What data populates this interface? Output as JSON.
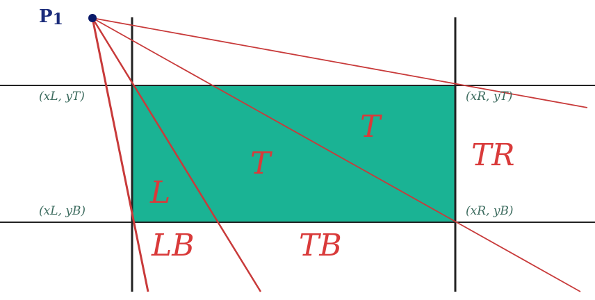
{
  "point": {
    "name": "P",
    "subscript": "1"
  },
  "corners": {
    "top_left": "(xL, yT)",
    "top_right": "(xR, yT)",
    "bottom_left": "(xL, yB)",
    "bottom_right": "(xR, yB)"
  },
  "region_labels": {
    "t_upper": "T",
    "t_lower": "T",
    "tr": "TR",
    "l": "L",
    "lb": "LB",
    "tb": "TB"
  },
  "colors": {
    "rect_fill": "#1ab394",
    "line_black": "#222222",
    "ray_red": "#c83a3a",
    "point_blue": "#0a1a6a",
    "label_red": "#d93a3a",
    "coord_green": "#3c6b5e"
  }
}
